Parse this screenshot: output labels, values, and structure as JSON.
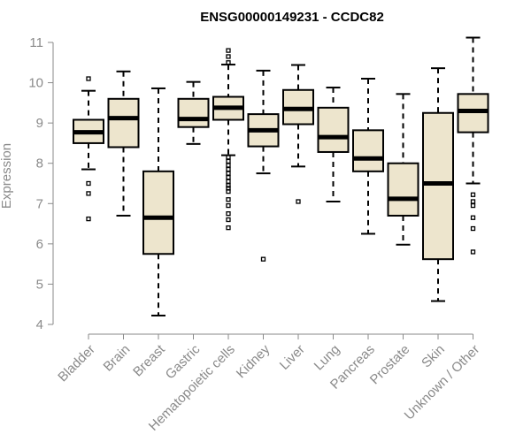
{
  "chart_data": {
    "type": "boxplot",
    "title": "ENSG00000149231 - CCDC82",
    "xlabel": "",
    "ylabel": "Expression",
    "ylim": [
      4,
      11
    ],
    "yticks": [
      "4",
      "5",
      "6",
      "7",
      "8",
      "9",
      "10",
      "11"
    ],
    "box_color": "#ede5cd",
    "categories": [
      "Bladder",
      "Brain",
      "Breast",
      "Gastric",
      "Hematopoietic cells",
      "Kidney",
      "Liver",
      "Lung",
      "Pancreas",
      "Prostate",
      "Skin",
      "Unknown / Other"
    ],
    "boxes": [
      {
        "min": 7.85,
        "q1": 8.5,
        "median": 8.77,
        "q3": 9.08,
        "max": 9.8,
        "outliers": [
          10.1,
          7.5,
          7.25,
          6.62
        ]
      },
      {
        "min": 6.7,
        "q1": 8.4,
        "median": 9.12,
        "q3": 9.6,
        "max": 10.28,
        "outliers": []
      },
      {
        "min": 4.22,
        "q1": 5.75,
        "median": 6.65,
        "q3": 7.8,
        "max": 9.86,
        "outliers": []
      },
      {
        "min": 8.48,
        "q1": 8.9,
        "median": 9.1,
        "q3": 9.6,
        "max": 10.02,
        "outliers": []
      },
      {
        "min": 8.2,
        "q1": 9.08,
        "median": 9.38,
        "q3": 9.65,
        "max": 10.45,
        "outliers": [
          10.8,
          10.65,
          10.5,
          8.15,
          8.05,
          7.95,
          7.85,
          7.75,
          7.65,
          7.55,
          7.45,
          7.38,
          7.3,
          7.1,
          6.95,
          6.75,
          6.6,
          6.4
        ]
      },
      {
        "min": 7.75,
        "q1": 8.42,
        "median": 8.82,
        "q3": 9.22,
        "max": 10.3,
        "outliers": [
          5.62
        ]
      },
      {
        "min": 7.92,
        "q1": 8.97,
        "median": 9.35,
        "q3": 9.82,
        "max": 10.44,
        "outliers": [
          7.05
        ]
      },
      {
        "min": 7.05,
        "q1": 8.28,
        "median": 8.65,
        "q3": 9.38,
        "max": 9.88,
        "outliers": []
      },
      {
        "min": 6.25,
        "q1": 7.8,
        "median": 8.12,
        "q3": 8.82,
        "max": 10.1,
        "outliers": []
      },
      {
        "min": 5.98,
        "q1": 6.7,
        "median": 7.12,
        "q3": 8.0,
        "max": 9.72,
        "outliers": []
      },
      {
        "min": 4.58,
        "q1": 5.62,
        "median": 7.5,
        "q3": 9.25,
        "max": 10.36,
        "outliers": []
      },
      {
        "min": 7.5,
        "q1": 8.77,
        "median": 9.3,
        "q3": 9.72,
        "max": 11.12,
        "outliers": [
          7.22,
          7.05,
          6.95,
          6.65,
          6.38,
          5.8
        ]
      }
    ]
  }
}
